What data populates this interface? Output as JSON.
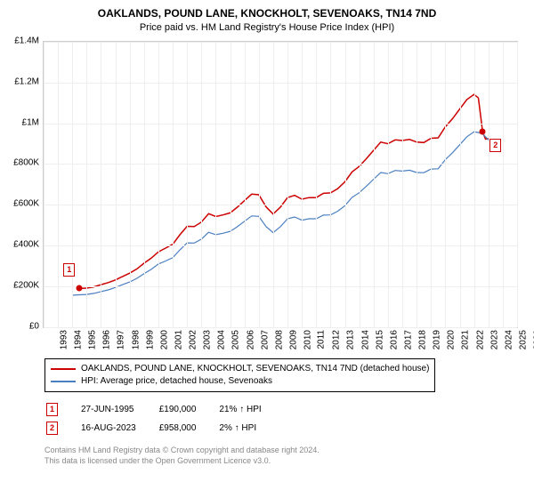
{
  "title": "OAKLANDS, POUND LANE, KNOCKHOLT, SEVENOAKS, TN14 7ND",
  "subtitle": "Price paid vs. HM Land Registry's House Price Index (HPI)",
  "chart": {
    "type": "line",
    "background_color": "#ffffff",
    "grid_color": "#eeeeee",
    "border_color": "#cccccc",
    "axis_label_fontsize": 10,
    "y": {
      "min": 0,
      "max": 1400000,
      "ticks": [
        {
          "v": 0,
          "label": "£0"
        },
        {
          "v": 200000,
          "label": "£200K"
        },
        {
          "v": 400000,
          "label": "£400K"
        },
        {
          "v": 600000,
          "label": "£600K"
        },
        {
          "v": 800000,
          "label": "£800K"
        },
        {
          "v": 1000000,
          "label": "£1M"
        },
        {
          "v": 1200000,
          "label": "£1.2M"
        },
        {
          "v": 1400000,
          "label": "£1.4M"
        }
      ]
    },
    "x": {
      "min": 1993,
      "max": 2026,
      "ticks": [
        1993,
        1994,
        1995,
        1996,
        1997,
        1998,
        1999,
        2000,
        2001,
        2002,
        2003,
        2004,
        2005,
        2006,
        2007,
        2008,
        2009,
        2010,
        2011,
        2012,
        2013,
        2014,
        2015,
        2016,
        2017,
        2018,
        2019,
        2020,
        2021,
        2022,
        2023,
        2024,
        2025,
        2026
      ]
    },
    "series": [
      {
        "name": "property",
        "label": "OAKLANDS, POUND LANE, KNOCKHOLT, SEVENOAKS, TN14 7ND (detached house)",
        "color": "#cc0000",
        "line_width": 1.5,
        "points": [
          [
            1995.5,
            190000
          ],
          [
            1996,
            192000
          ],
          [
            1996.5,
            198000
          ],
          [
            1997,
            209000
          ],
          [
            1997.5,
            219000
          ],
          [
            1998,
            232000
          ],
          [
            1998.5,
            249000
          ],
          [
            1999,
            265000
          ],
          [
            1999.5,
            286000
          ],
          [
            2000,
            314000
          ],
          [
            2000.5,
            339000
          ],
          [
            2001,
            370000
          ],
          [
            2001.5,
            388000
          ],
          [
            2002,
            407000
          ],
          [
            2002.5,
            454000
          ],
          [
            2003,
            495000
          ],
          [
            2003.5,
            494000
          ],
          [
            2004,
            516000
          ],
          [
            2004.5,
            557000
          ],
          [
            2005,
            543000
          ],
          [
            2005.5,
            551000
          ],
          [
            2006,
            561000
          ],
          [
            2006.5,
            589000
          ],
          [
            2007,
            621000
          ],
          [
            2007.5,
            653000
          ],
          [
            2008,
            650000
          ],
          [
            2008.5,
            591000
          ],
          [
            2009,
            555000
          ],
          [
            2009.5,
            589000
          ],
          [
            2010,
            636000
          ],
          [
            2010.5,
            647000
          ],
          [
            2011,
            628000
          ],
          [
            2011.5,
            636000
          ],
          [
            2012,
            636000
          ],
          [
            2012.5,
            657000
          ],
          [
            2013,
            659000
          ],
          [
            2013.5,
            680000
          ],
          [
            2014,
            713000
          ],
          [
            2014.5,
            762000
          ],
          [
            2015,
            789000
          ],
          [
            2015.5,
            827000
          ],
          [
            2016,
            868000
          ],
          [
            2016.5,
            908000
          ],
          [
            2017,
            900000
          ],
          [
            2017.5,
            919000
          ],
          [
            2018,
            916000
          ],
          [
            2018.5,
            921000
          ],
          [
            2019,
            908000
          ],
          [
            2019.5,
            906000
          ],
          [
            2020,
            927000
          ],
          [
            2020.5,
            929000
          ],
          [
            2021,
            983000
          ],
          [
            2021.5,
            1023000
          ],
          [
            2022,
            1070000
          ],
          [
            2022.5,
            1117000
          ],
          [
            2023,
            1142000
          ],
          [
            2023.3,
            1125000
          ],
          [
            2023.6,
            958000
          ],
          [
            2023.8,
            923000
          ],
          [
            2024,
            925000
          ],
          [
            2024.2,
            905000
          ]
        ]
      },
      {
        "name": "hpi",
        "label": "HPI: Average price, detached house, Sevenoaks",
        "color": "#4a7fc1",
        "line_width": 1.2,
        "points": [
          [
            1995,
            157000
          ],
          [
            1995.5,
            159000
          ],
          [
            1996,
            161000
          ],
          [
            1996.5,
            166000
          ],
          [
            1997,
            175000
          ],
          [
            1997.5,
            183000
          ],
          [
            1998,
            195000
          ],
          [
            1998.5,
            209000
          ],
          [
            1999,
            222000
          ],
          [
            1999.5,
            240000
          ],
          [
            2000,
            263000
          ],
          [
            2000.5,
            284000
          ],
          [
            2001,
            310000
          ],
          [
            2001.5,
            325000
          ],
          [
            2002,
            341000
          ],
          [
            2002.5,
            380000
          ],
          [
            2003,
            414000
          ],
          [
            2003.5,
            413000
          ],
          [
            2004,
            432000
          ],
          [
            2004.5,
            466000
          ],
          [
            2005,
            454000
          ],
          [
            2005.5,
            461000
          ],
          [
            2006,
            470000
          ],
          [
            2006.5,
            493000
          ],
          [
            2007,
            520000
          ],
          [
            2007.5,
            546000
          ],
          [
            2008,
            544000
          ],
          [
            2008.5,
            494000
          ],
          [
            2009,
            464000
          ],
          [
            2009.5,
            493000
          ],
          [
            2010,
            532000
          ],
          [
            2010.5,
            541000
          ],
          [
            2011,
            525000
          ],
          [
            2011.5,
            532000
          ],
          [
            2012,
            532000
          ],
          [
            2012.5,
            550000
          ],
          [
            2013,
            551000
          ],
          [
            2013.5,
            569000
          ],
          [
            2014,
            596000
          ],
          [
            2014.5,
            637000
          ],
          [
            2015,
            660000
          ],
          [
            2015.5,
            692000
          ],
          [
            2016,
            726000
          ],
          [
            2016.5,
            759000
          ],
          [
            2017,
            753000
          ],
          [
            2017.5,
            769000
          ],
          [
            2018,
            766000
          ],
          [
            2018.5,
            770000
          ],
          [
            2019,
            759000
          ],
          [
            2019.5,
            758000
          ],
          [
            2020,
            776000
          ],
          [
            2020.5,
            777000
          ],
          [
            2021,
            822000
          ],
          [
            2021.5,
            856000
          ],
          [
            2022,
            895000
          ],
          [
            2022.5,
            934000
          ],
          [
            2023,
            958000
          ],
          [
            2023.3,
            955000
          ],
          [
            2023.6,
            948000
          ],
          [
            2024,
            920000
          ],
          [
            2024.2,
            900000
          ]
        ]
      }
    ],
    "markers": [
      {
        "id": "1",
        "x": 1995.5,
        "y": 190000,
        "color": "#cc0000"
      },
      {
        "id": "2",
        "x": 2023.6,
        "y": 958000,
        "color": "#cc0000"
      }
    ]
  },
  "legend": {
    "items": [
      {
        "color": "#cc0000",
        "label": "OAKLANDS, POUND LANE, KNOCKHOLT, SEVENOAKS, TN14 7ND (detached house)"
      },
      {
        "color": "#4a7fc1",
        "label": "HPI: Average price, detached house, Sevenoaks"
      }
    ]
  },
  "callouts": [
    {
      "id": "1",
      "date": "27-JUN-1995",
      "price": "£190,000",
      "change": "21% ↑ HPI"
    },
    {
      "id": "2",
      "date": "16-AUG-2023",
      "price": "£958,000",
      "change": "2% ↑ HPI"
    }
  ],
  "attribution": {
    "line1": "Contains HM Land Registry data © Crown copyright and database right 2024.",
    "line2": "This data is licensed under the Open Government Licence v3.0."
  }
}
